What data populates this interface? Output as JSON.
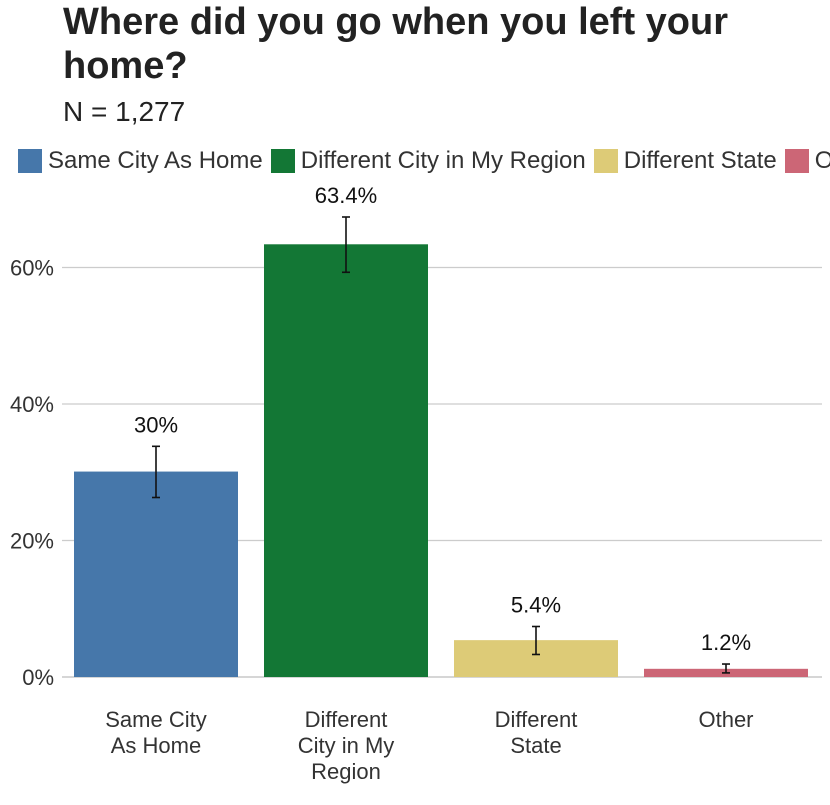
{
  "chart_data": {
    "type": "bar",
    "title": "Where did you go when you left your home?",
    "subtitle": "N = 1,277",
    "categories": [
      "Same City As Home",
      "Different City in My Region",
      "Different State",
      "Other"
    ],
    "tick_labels": [
      [
        "Same City",
        "As Home"
      ],
      [
        "Different",
        "City in My",
        "Region"
      ],
      [
        "Different",
        "State"
      ],
      [
        "Other"
      ]
    ],
    "values": [
      30.1,
      63.4,
      5.4,
      1.2
    ],
    "value_labels": [
      "30%",
      "63.4%",
      "5.4%",
      "1.2%"
    ],
    "error_low": [
      26.3,
      59.3,
      3.3,
      0.6
    ],
    "error_high": [
      33.8,
      67.4,
      7.4,
      1.9
    ],
    "colors": [
      "#4677AA",
      "#137735",
      "#DDCB77",
      "#CC6676"
    ],
    "legend": [
      "Same City As Home",
      "Different City in My Region",
      "Different State",
      "Other"
    ],
    "legend_position": "top",
    "xlabel": "",
    "ylabel": "",
    "ylim": [
      0,
      70
    ],
    "yticks": [
      0,
      20,
      40,
      60
    ],
    "ytick_labels": [
      "0%",
      "20%",
      "40%",
      "60%"
    ],
    "grid": true
  }
}
